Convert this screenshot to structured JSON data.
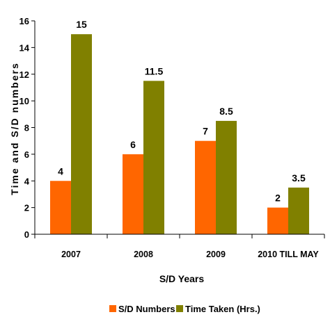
{
  "chart_data": {
    "type": "bar",
    "categories": [
      "2007",
      "2008",
      "2009",
      "2010 TILL MAY"
    ],
    "series": [
      {
        "name": "S/D Numbers",
        "values": [
          4,
          6,
          7,
          2
        ],
        "color": "#ff6600"
      },
      {
        "name": "Time Taken (Hrs.)",
        "values": [
          15,
          11.5,
          8.5,
          3.5
        ],
        "color": "#808000"
      }
    ],
    "xlabel": "S/D Years",
    "ylabel": "Time and S/D numbers",
    "ylim": [
      0,
      16
    ],
    "yticks": [
      0,
      2,
      4,
      6,
      8,
      10,
      12,
      14,
      16
    ],
    "data_labels": [
      [
        "4",
        "6",
        "7",
        "2"
      ],
      [
        "15",
        "11.5",
        "8.5",
        "3.5"
      ]
    ],
    "grid": false,
    "legend_position": "bottom"
  }
}
